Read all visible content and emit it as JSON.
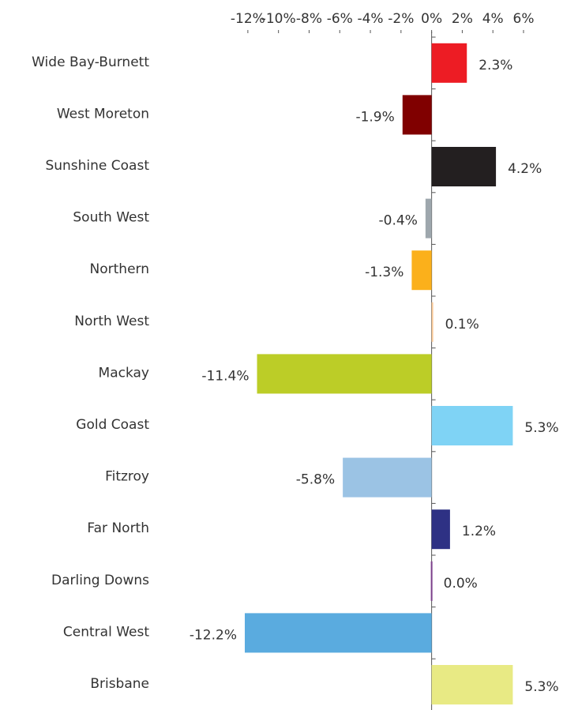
{
  "chart_data": {
    "type": "barh",
    "categories": [
      "Wide Bay-Burnett",
      "West Moreton",
      "Sunshine Coast",
      "South West",
      "Northern",
      "North West",
      "Mackay",
      "Gold Coast",
      "Fitzroy",
      "Far North",
      "Darling Downs",
      "Central West",
      "Brisbane"
    ],
    "values": [
      2.3,
      -1.9,
      4.2,
      -0.4,
      -1.3,
      0.1,
      -11.4,
      5.3,
      -5.8,
      1.2,
      0.0,
      -12.2,
      5.3
    ],
    "value_labels": [
      "2.3%",
      "-1.9%",
      "4.2%",
      "-0.4%",
      "-1.3%",
      "0.1%",
      "-11.4%",
      "5.3%",
      "-5.8%",
      "1.2%",
      "0.0%",
      "-12.2%",
      "5.3%"
    ],
    "colors": [
      "#ed1c24",
      "#800000",
      "#231f20",
      "#9ea7ad",
      "#fbb01b",
      "#f9c997",
      "#bccd27",
      "#7fd3f5",
      "#9bc3e4",
      "#2e3184",
      "#7b3f8a",
      "#5aabdf",
      "#e8ea84"
    ],
    "xlim": [
      -12.2,
      6
    ],
    "xticks": [
      {
        "value": -12,
        "label": "-12%"
      },
      {
        "value": -10,
        "label": "-10%"
      },
      {
        "value": -8,
        "label": "-8%"
      },
      {
        "value": -6,
        "label": "-6%"
      },
      {
        "value": -4,
        "label": "-4%"
      },
      {
        "value": -2,
        "label": "-2%"
      },
      {
        "value": 0,
        "label": "0%"
      },
      {
        "value": 2,
        "label": "2%"
      },
      {
        "value": 4,
        "label": "4%"
      },
      {
        "value": 6,
        "label": "6%"
      }
    ]
  }
}
